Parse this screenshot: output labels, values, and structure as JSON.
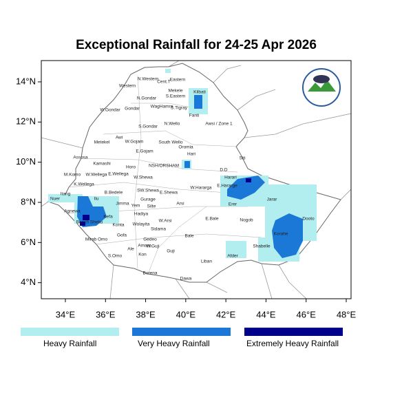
{
  "chart_data": {
    "type": "map",
    "title": "Exceptional Rainfall for 24-25 Apr 2026",
    "xlim": [
      32.8,
      48.24
    ],
    "ylim": [
      3.2,
      15.06
    ],
    "xticks": [
      {
        "value": 34,
        "label": "34°E"
      },
      {
        "value": 36,
        "label": "36°E"
      },
      {
        "value": 38,
        "label": "38°E"
      },
      {
        "value": 40,
        "label": "40°E"
      },
      {
        "value": 42,
        "label": "42°E"
      },
      {
        "value": 44,
        "label": "44°E"
      },
      {
        "value": 46,
        "label": "46°E"
      },
      {
        "value": 48,
        "label": "48°E"
      }
    ],
    "yticks": [
      {
        "value": 4,
        "label": "4°N"
      },
      {
        "value": 6,
        "label": "6°N"
      },
      {
        "value": 8,
        "label": "8°N"
      },
      {
        "value": 10,
        "label": "10°N"
      },
      {
        "value": 12,
        "label": "12°N"
      },
      {
        "value": 14,
        "label": "14°N"
      }
    ],
    "legend": [
      {
        "name": "Heavy Rainfall",
        "color": "#b2eef0"
      },
      {
        "name": "Very Heavy Rainfall",
        "color": "#1c78d6"
      },
      {
        "name": "Extremely Heavy Rainfall",
        "color": "#00008b"
      }
    ],
    "regions": [
      "Western",
      "N.Western",
      "Cent.T",
      "Eastern",
      "Mekele",
      "S.Eastern",
      "Kilbati",
      "N.Gondar",
      "Gondar",
      "W.Gondar",
      "WagHamra",
      "S.Tigray",
      "Fanti",
      "Awsi / Zone 1",
      "N.Wello",
      "S.Gondar",
      "Metekel",
      "Awi",
      "W.Gojam",
      "South Wello",
      "Oromia",
      "E.Gojam",
      "Hari",
      "Siti",
      "Assosa",
      "Kamashi",
      "Horo",
      "NSH/ORSHAM",
      "D.D",
      "M.Komo",
      "W.Wellega",
      "E.Wellega",
      "K.Wellega",
      "W.Shewa",
      "Harari",
      "E.Hararge",
      "W.Hararga",
      "Nuer",
      "Itang",
      "B.Bedele",
      "SW.Shewa",
      "E.Shewa",
      "Gurage",
      "Ilu",
      "Jimma",
      "Arsi",
      "Erer",
      "Jarar",
      "Agnewa",
      "Yem",
      "Silte",
      "Hadiya",
      "Kefa",
      "W.Arsi",
      "E.Bale",
      "Nogob",
      "Dooto",
      "Bench Sheko",
      "Konta",
      "Wolayita",
      "Sidama",
      "Korahe",
      "Mirab Omo",
      "Gofa",
      "Gedeo",
      "Bale",
      "Shabelle",
      "Afder",
      "Amaro",
      "W.Guji",
      "S.Omo",
      "Ale",
      "Kon",
      "Guji",
      "Liban",
      "Borena",
      "Dawa"
    ]
  }
}
